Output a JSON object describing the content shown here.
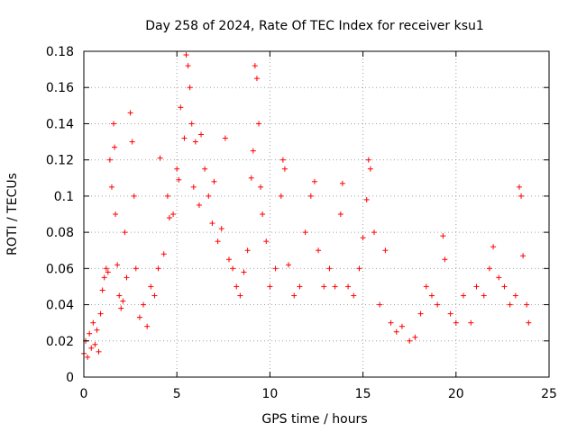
{
  "chart_data": {
    "type": "scatter",
    "title": "Day 258 of 2024, Rate Of TEC Index for receiver ksu1",
    "xlabel": "GPS time / hours",
    "ylabel": "ROTI / TECUs",
    "xlim": [
      0,
      25
    ],
    "ylim": [
      0,
      0.18
    ],
    "x_ticks": [
      "0",
      "5",
      "10",
      "15",
      "20",
      "25"
    ],
    "y_ticks": [
      "0",
      "0.02",
      "0.04",
      "0.06",
      "0.08",
      "0.1",
      "0.12",
      "0.14",
      "0.16",
      "0.18"
    ],
    "marker": "+",
    "color": "#ff0000",
    "grid": true,
    "series": [
      {
        "name": "",
        "points": [
          [
            0.0,
            0.013
          ],
          [
            0.1,
            0.02
          ],
          [
            0.2,
            0.011
          ],
          [
            0.3,
            0.024
          ],
          [
            0.4,
            0.016
          ],
          [
            0.5,
            0.03
          ],
          [
            0.6,
            0.018
          ],
          [
            0.7,
            0.026
          ],
          [
            0.8,
            0.014
          ],
          [
            0.9,
            0.035
          ],
          [
            1.0,
            0.048
          ],
          [
            1.1,
            0.055
          ],
          [
            1.2,
            0.06
          ],
          [
            1.3,
            0.058
          ],
          [
            1.4,
            0.12
          ],
          [
            1.5,
            0.105
          ],
          [
            1.6,
            0.14
          ],
          [
            1.65,
            0.127
          ],
          [
            1.7,
            0.09
          ],
          [
            1.8,
            0.062
          ],
          [
            1.9,
            0.045
          ],
          [
            2.0,
            0.038
          ],
          [
            2.1,
            0.042
          ],
          [
            2.2,
            0.08
          ],
          [
            2.3,
            0.055
          ],
          [
            2.5,
            0.146
          ],
          [
            2.6,
            0.13
          ],
          [
            2.7,
            0.1
          ],
          [
            2.8,
            0.06
          ],
          [
            3.0,
            0.033
          ],
          [
            3.2,
            0.04
          ],
          [
            3.4,
            0.028
          ],
          [
            3.6,
            0.05
          ],
          [
            3.8,
            0.045
          ],
          [
            4.0,
            0.06
          ],
          [
            4.1,
            0.121
          ],
          [
            4.3,
            0.068
          ],
          [
            4.5,
            0.1
          ],
          [
            4.6,
            0.088
          ],
          [
            4.8,
            0.09
          ],
          [
            5.0,
            0.115
          ],
          [
            5.1,
            0.109
          ],
          [
            5.2,
            0.149
          ],
          [
            5.4,
            0.132
          ],
          [
            5.5,
            0.178
          ],
          [
            5.6,
            0.172
          ],
          [
            5.7,
            0.16
          ],
          [
            5.8,
            0.14
          ],
          [
            5.9,
            0.105
          ],
          [
            6.0,
            0.13
          ],
          [
            6.2,
            0.095
          ],
          [
            6.3,
            0.134
          ],
          [
            6.5,
            0.115
          ],
          [
            6.7,
            0.1
          ],
          [
            6.9,
            0.085
          ],
          [
            7.0,
            0.108
          ],
          [
            7.2,
            0.075
          ],
          [
            7.4,
            0.082
          ],
          [
            7.6,
            0.132
          ],
          [
            7.8,
            0.065
          ],
          [
            8.0,
            0.06
          ],
          [
            8.2,
            0.05
          ],
          [
            8.4,
            0.045
          ],
          [
            8.6,
            0.058
          ],
          [
            8.8,
            0.07
          ],
          [
            9.0,
            0.11
          ],
          [
            9.1,
            0.125
          ],
          [
            9.2,
            0.172
          ],
          [
            9.3,
            0.165
          ],
          [
            9.4,
            0.14
          ],
          [
            9.5,
            0.105
          ],
          [
            9.6,
            0.09
          ],
          [
            9.8,
            0.075
          ],
          [
            10.0,
            0.05
          ],
          [
            10.3,
            0.06
          ],
          [
            10.6,
            0.1
          ],
          [
            10.7,
            0.12
          ],
          [
            10.8,
            0.115
          ],
          [
            11.0,
            0.062
          ],
          [
            11.3,
            0.045
          ],
          [
            11.6,
            0.05
          ],
          [
            11.9,
            0.08
          ],
          [
            12.2,
            0.1
          ],
          [
            12.4,
            0.108
          ],
          [
            12.6,
            0.07
          ],
          [
            12.9,
            0.05
          ],
          [
            13.2,
            0.06
          ],
          [
            13.5,
            0.05
          ],
          [
            13.8,
            0.09
          ],
          [
            13.9,
            0.107
          ],
          [
            14.2,
            0.05
          ],
          [
            14.5,
            0.045
          ],
          [
            14.8,
            0.06
          ],
          [
            15.0,
            0.077
          ],
          [
            15.2,
            0.098
          ],
          [
            15.3,
            0.12
          ],
          [
            15.4,
            0.115
          ],
          [
            15.6,
            0.08
          ],
          [
            15.9,
            0.04
          ],
          [
            16.2,
            0.07
          ],
          [
            16.5,
            0.03
          ],
          [
            16.8,
            0.025
          ],
          [
            17.1,
            0.028
          ],
          [
            17.5,
            0.02
          ],
          [
            17.8,
            0.022
          ],
          [
            18.1,
            0.035
          ],
          [
            18.4,
            0.05
          ],
          [
            18.7,
            0.045
          ],
          [
            19.0,
            0.04
          ],
          [
            19.3,
            0.078
          ],
          [
            19.4,
            0.065
          ],
          [
            19.7,
            0.035
          ],
          [
            20.0,
            0.03
          ],
          [
            20.4,
            0.045
          ],
          [
            20.8,
            0.03
          ],
          [
            21.1,
            0.05
          ],
          [
            21.5,
            0.045
          ],
          [
            21.8,
            0.06
          ],
          [
            22.0,
            0.072
          ],
          [
            22.3,
            0.055
          ],
          [
            22.6,
            0.05
          ],
          [
            22.9,
            0.04
          ],
          [
            23.2,
            0.045
          ],
          [
            23.4,
            0.105
          ],
          [
            23.5,
            0.1
          ],
          [
            23.6,
            0.067
          ],
          [
            23.8,
            0.04
          ],
          [
            23.9,
            0.03
          ]
        ]
      }
    ]
  }
}
